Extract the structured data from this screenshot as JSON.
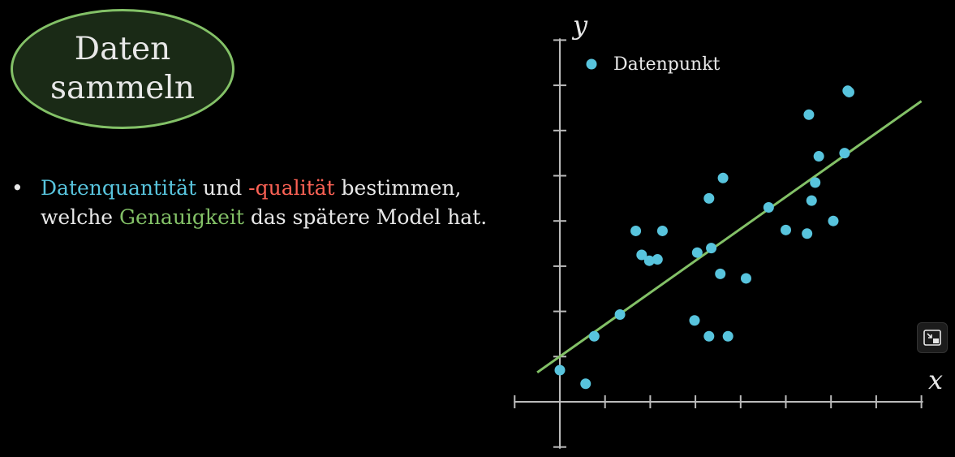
{
  "title": {
    "line1": "Daten",
    "line2": "sammeln"
  },
  "bullet": {
    "line1": {
      "t1": "Datenquantität",
      "t2": " und ",
      "t3": "-qualität",
      "t4": " bestimmen,"
    },
    "line2": {
      "t1": "welche ",
      "t2": "Genauigkeit",
      "t3": " das spätere Model hat."
    },
    "colors": {
      "blue": "#58c4dd",
      "red": "#fc6255",
      "green": "#83c167"
    }
  },
  "chart_data": {
    "type": "scatter",
    "title": "",
    "xlabel": "x",
    "ylabel": "y",
    "xlim": [
      -1,
      8
    ],
    "ylim": [
      -1,
      8
    ],
    "grid": false,
    "legend": {
      "placement": "top-left",
      "entries": [
        "Datenpunkt"
      ]
    },
    "series": [
      {
        "name": "Datenpunkt",
        "color": "#58c4dd",
        "x": [
          0.0,
          0.57,
          0.76,
          1.33,
          1.68,
          1.81,
          1.98,
          2.16,
          2.27,
          2.98,
          3.04,
          3.3,
          3.35,
          3.3,
          3.55,
          3.61,
          3.72,
          4.12,
          4.62,
          5.0,
          5.47,
          5.51,
          5.57,
          5.65,
          5.73,
          6.05,
          6.3,
          6.37,
          6.4
        ],
        "y": [
          0.7,
          0.4,
          1.45,
          1.93,
          3.78,
          3.25,
          3.12,
          3.15,
          3.78,
          1.8,
          3.3,
          1.45,
          3.4,
          4.5,
          2.83,
          4.95,
          1.45,
          2.73,
          4.3,
          3.8,
          3.72,
          6.35,
          4.45,
          4.85,
          5.43,
          4.0,
          5.5,
          6.88,
          6.85
        ]
      },
      {
        "name": "",
        "type": "line",
        "color": "#83c167",
        "x": [
          -0.5,
          8.0
        ],
        "y": [
          0.65,
          6.65
        ]
      }
    ]
  },
  "icons": {
    "pip": "picture-in-picture-icon"
  }
}
